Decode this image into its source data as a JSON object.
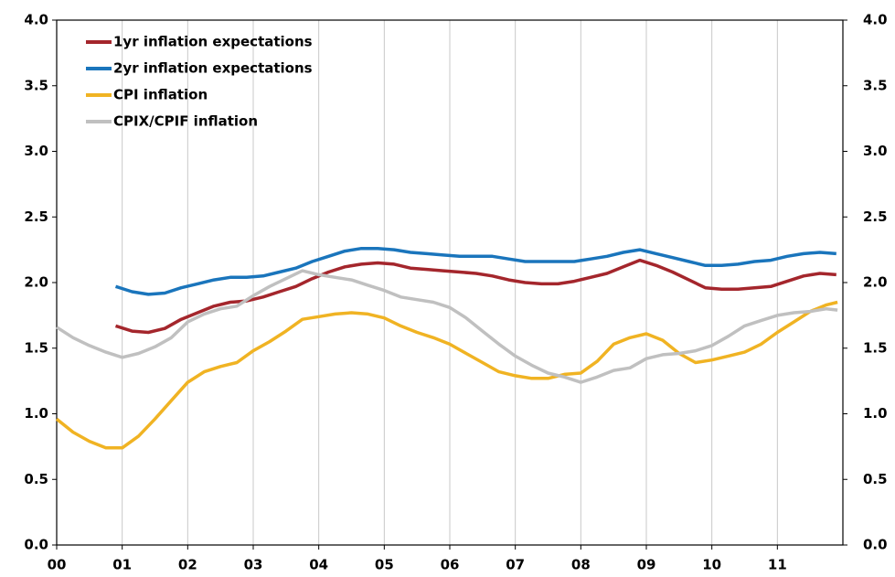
{
  "chart_data": {
    "type": "line",
    "xlim": [
      2000,
      2012
    ],
    "xticks": [
      {
        "value": 2000,
        "label": "00"
      },
      {
        "value": 2001,
        "label": "01"
      },
      {
        "value": 2002,
        "label": "02"
      },
      {
        "value": 2003,
        "label": "03"
      },
      {
        "value": 2004,
        "label": "04"
      },
      {
        "value": 2005,
        "label": "05"
      },
      {
        "value": 2006,
        "label": "06"
      },
      {
        "value": 2007,
        "label": "07"
      },
      {
        "value": 2008,
        "label": "08"
      },
      {
        "value": 2009,
        "label": "09"
      },
      {
        "value": 2010,
        "label": "10"
      },
      {
        "value": 2011,
        "label": "11"
      }
    ],
    "ylim": [
      0,
      4
    ],
    "yticks": [
      {
        "value": 0,
        "label": "0.0"
      },
      0.5,
      {
        "value": 1,
        "label": "1.0"
      },
      1.5,
      {
        "value": 2,
        "label": "2.0"
      },
      2.5,
      {
        "value": 3,
        "label": "3.0"
      },
      3.5,
      {
        "value": 4,
        "label": "4.0"
      }
    ],
    "y2lim": [
      0,
      4
    ],
    "y2ticks": [
      {
        "value": 0,
        "label": "0.0"
      },
      0.5,
      {
        "value": 1,
        "label": "1.0"
      },
      1.5,
      {
        "value": 2,
        "label": "2.0"
      },
      2.5,
      {
        "value": 3,
        "label": "3.0"
      },
      3.5,
      {
        "value": 4,
        "label": "4.0"
      }
    ],
    "grid": true,
    "legend": "top-left",
    "series": [
      {
        "name": "1yr inflation expectations",
        "color": "#a4262c",
        "x": [
          2000.9,
          2001.15,
          2001.4,
          2001.65,
          2001.9,
          2002.15,
          2002.4,
          2002.65,
          2002.9,
          2003.15,
          2003.4,
          2003.65,
          2003.9,
          2004.15,
          2004.4,
          2004.65,
          2004.9,
          2005.15,
          2005.4,
          2005.65,
          2005.9,
          2006.15,
          2006.4,
          2006.65,
          2006.9,
          2007.15,
          2007.4,
          2007.65,
          2007.9,
          2008.15,
          2008.4,
          2008.65,
          2008.9,
          2009.15,
          2009.4,
          2009.65,
          2009.9,
          2010.15,
          2010.4,
          2010.65,
          2010.9,
          2011.15,
          2011.4,
          2011.65,
          2011.9
        ],
        "values": [
          1.67,
          1.63,
          1.62,
          1.65,
          1.72,
          1.77,
          1.82,
          1.85,
          1.86,
          1.89,
          1.93,
          1.97,
          2.03,
          2.08,
          2.12,
          2.14,
          2.15,
          2.14,
          2.11,
          2.1,
          2.09,
          2.08,
          2.07,
          2.05,
          2.02,
          2.0,
          1.99,
          1.99,
          2.01,
          2.04,
          2.07,
          2.12,
          2.17,
          2.13,
          2.08,
          2.02,
          1.96,
          1.95,
          1.95,
          1.96,
          1.97,
          2.01,
          2.05,
          2.07,
          2.06
        ]
      },
      {
        "name": "2yr inflation expectations",
        "color": "#1a75bc",
        "x": [
          2000.9,
          2001.15,
          2001.4,
          2001.65,
          2001.9,
          2002.15,
          2002.4,
          2002.65,
          2002.9,
          2003.15,
          2003.4,
          2003.65,
          2003.9,
          2004.15,
          2004.4,
          2004.65,
          2004.9,
          2005.15,
          2005.4,
          2005.65,
          2005.9,
          2006.15,
          2006.4,
          2006.65,
          2006.9,
          2007.15,
          2007.4,
          2007.65,
          2007.9,
          2008.15,
          2008.4,
          2008.65,
          2008.9,
          2009.15,
          2009.4,
          2009.65,
          2009.9,
          2010.15,
          2010.4,
          2010.65,
          2010.9,
          2011.15,
          2011.4,
          2011.65,
          2011.9
        ],
        "values": [
          1.97,
          1.93,
          1.91,
          1.92,
          1.96,
          1.99,
          2.02,
          2.04,
          2.04,
          2.05,
          2.08,
          2.11,
          2.16,
          2.2,
          2.24,
          2.26,
          2.26,
          2.25,
          2.23,
          2.22,
          2.21,
          2.2,
          2.2,
          2.2,
          2.18,
          2.16,
          2.16,
          2.16,
          2.16,
          2.18,
          2.2,
          2.23,
          2.25,
          2.22,
          2.19,
          2.16,
          2.13,
          2.13,
          2.14,
          2.16,
          2.17,
          2.2,
          2.22,
          2.23,
          2.22
        ]
      },
      {
        "name": "CPI inflation",
        "color": "#f0b323",
        "x": [
          2000,
          2000.25,
          2000.5,
          2000.75,
          2001,
          2001.25,
          2001.5,
          2001.75,
          2002,
          2002.25,
          2002.5,
          2002.75,
          2003,
          2003.25,
          2003.5,
          2003.75,
          2004,
          2004.25,
          2004.5,
          2004.75,
          2005,
          2005.25,
          2005.5,
          2005.75,
          2006,
          2006.25,
          2006.5,
          2006.75,
          2007,
          2007.25,
          2007.5,
          2007.75,
          2008,
          2008.25,
          2008.5,
          2008.75,
          2009,
          2009.25,
          2009.5,
          2009.75,
          2010,
          2010.25,
          2010.5,
          2010.75,
          2011,
          2011.25,
          2011.5,
          2011.75,
          2011.917
        ],
        "values": [
          0.96,
          0.86,
          0.79,
          0.74,
          0.74,
          0.83,
          0.96,
          1.1,
          1.24,
          1.32,
          1.36,
          1.39,
          1.48,
          1.55,
          1.63,
          1.72,
          1.74,
          1.76,
          1.77,
          1.76,
          1.73,
          1.67,
          1.62,
          1.58,
          1.53,
          1.46,
          1.39,
          1.32,
          1.29,
          1.27,
          1.27,
          1.3,
          1.31,
          1.4,
          1.53,
          1.58,
          1.61,
          1.56,
          1.46,
          1.39,
          1.41,
          1.44,
          1.47,
          1.53,
          1.62,
          1.7,
          1.78,
          1.83,
          1.85
        ]
      },
      {
        "name": "CPIX/CPIF inflation",
        "color": "#c0c0c0",
        "x": [
          2000,
          2000.25,
          2000.5,
          2000.75,
          2001,
          2001.25,
          2001.5,
          2001.75,
          2002,
          2002.25,
          2002.5,
          2002.75,
          2003,
          2003.25,
          2003.5,
          2003.75,
          2004,
          2004.25,
          2004.5,
          2004.75,
          2005,
          2005.25,
          2005.5,
          2005.75,
          2006,
          2006.25,
          2006.5,
          2006.75,
          2007,
          2007.25,
          2007.5,
          2007.75,
          2008,
          2008.25,
          2008.5,
          2008.75,
          2009,
          2009.25,
          2009.5,
          2009.75,
          2010,
          2010.25,
          2010.5,
          2010.75,
          2011,
          2011.25,
          2011.5,
          2011.75,
          2011.917
        ],
        "values": [
          1.66,
          1.58,
          1.52,
          1.47,
          1.43,
          1.46,
          1.51,
          1.58,
          1.7,
          1.76,
          1.8,
          1.82,
          1.9,
          1.97,
          2.03,
          2.09,
          2.06,
          2.04,
          2.02,
          1.98,
          1.94,
          1.89,
          1.87,
          1.85,
          1.81,
          1.73,
          1.63,
          1.53,
          1.44,
          1.37,
          1.31,
          1.28,
          1.24,
          1.28,
          1.33,
          1.35,
          1.42,
          1.45,
          1.46,
          1.48,
          1.52,
          1.59,
          1.67,
          1.71,
          1.75,
          1.77,
          1.78,
          1.8,
          1.79
        ]
      }
    ]
  }
}
